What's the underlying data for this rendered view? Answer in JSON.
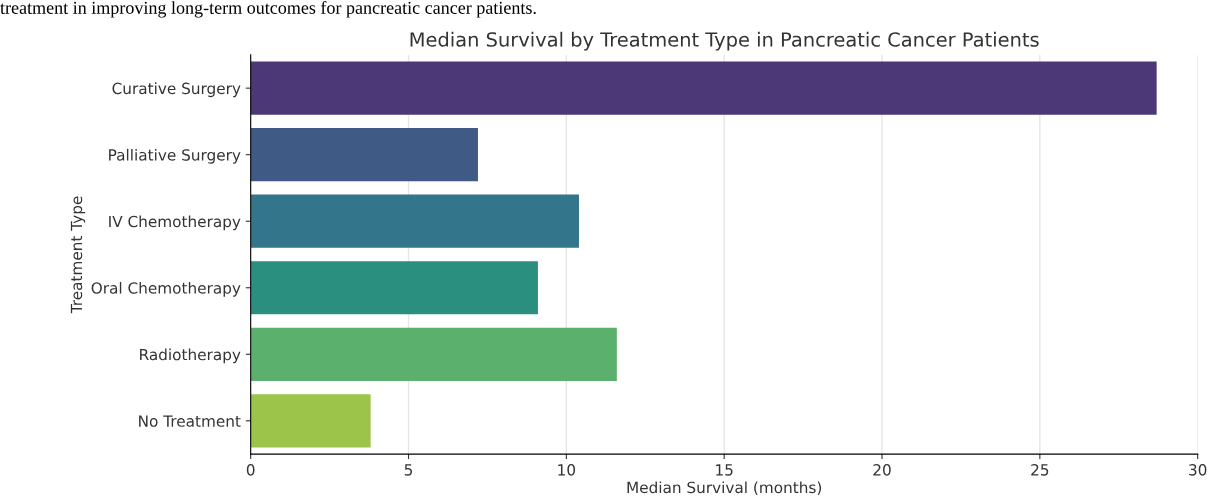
{
  "chart_data": {
    "type": "bar",
    "orientation": "horizontal",
    "title": "Median Survival by Treatment Type in Pancreatic Cancer Patients",
    "xlabel": "Median Survival (months)",
    "ylabel": "Treatment Type",
    "annotations": [
      "treatment in improving long-term outcomes for pancreatic cancer patients."
    ],
    "categories": [
      "Curative Surgery",
      "Palliative Surgery",
      "IV Chemotherapy",
      "Oral Chemotherapy",
      "Radiotherapy",
      "No Treatment"
    ],
    "values": [
      28.7,
      7.2,
      10.4,
      9.1,
      11.6,
      3.8
    ],
    "colors": [
      "#4c3777",
      "#3e5a85",
      "#33758a",
      "#2b8f80",
      "#5ab06c",
      "#9cc44a"
    ],
    "xlim": [
      0,
      30
    ],
    "xticks": [
      0,
      5,
      10,
      15,
      20,
      25,
      30
    ],
    "grid": "x"
  }
}
